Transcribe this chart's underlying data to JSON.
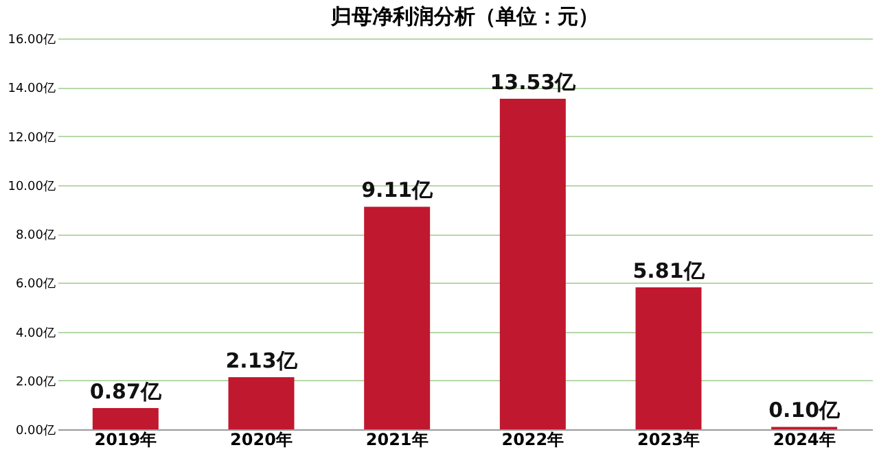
{
  "chart_data": {
    "type": "bar",
    "title": "归母净利润分析（单位：元）",
    "categories": [
      "2019年",
      "2020年",
      "2021年",
      "2022年",
      "2023年",
      "2024年"
    ],
    "series": [
      {
        "color": "#c0182f",
        "values": [
          0.87,
          2.13,
          9.11,
          13.53,
          5.81,
          0.1
        ]
      }
    ],
    "value_labels": [
      "0.87亿",
      "2.13亿",
      "9.11亿",
      "13.53亿",
      "5.81亿",
      "0.10亿"
    ],
    "ylim": [
      0,
      16
    ],
    "yticks": [
      {
        "value": 0,
        "label": "0.00亿"
      },
      {
        "value": 2,
        "label": "2.00亿"
      },
      {
        "value": 4,
        "label": "4.00亿"
      },
      {
        "value": 6,
        "label": "6.00亿"
      },
      {
        "value": 8,
        "label": "8.00亿"
      },
      {
        "value": 10,
        "label": "10.00亿"
      },
      {
        "value": 12,
        "label": "12.00亿"
      },
      {
        "value": 14,
        "label": "14.00亿"
      },
      {
        "value": 16,
        "label": "16.00亿"
      }
    ],
    "grid": "y"
  }
}
